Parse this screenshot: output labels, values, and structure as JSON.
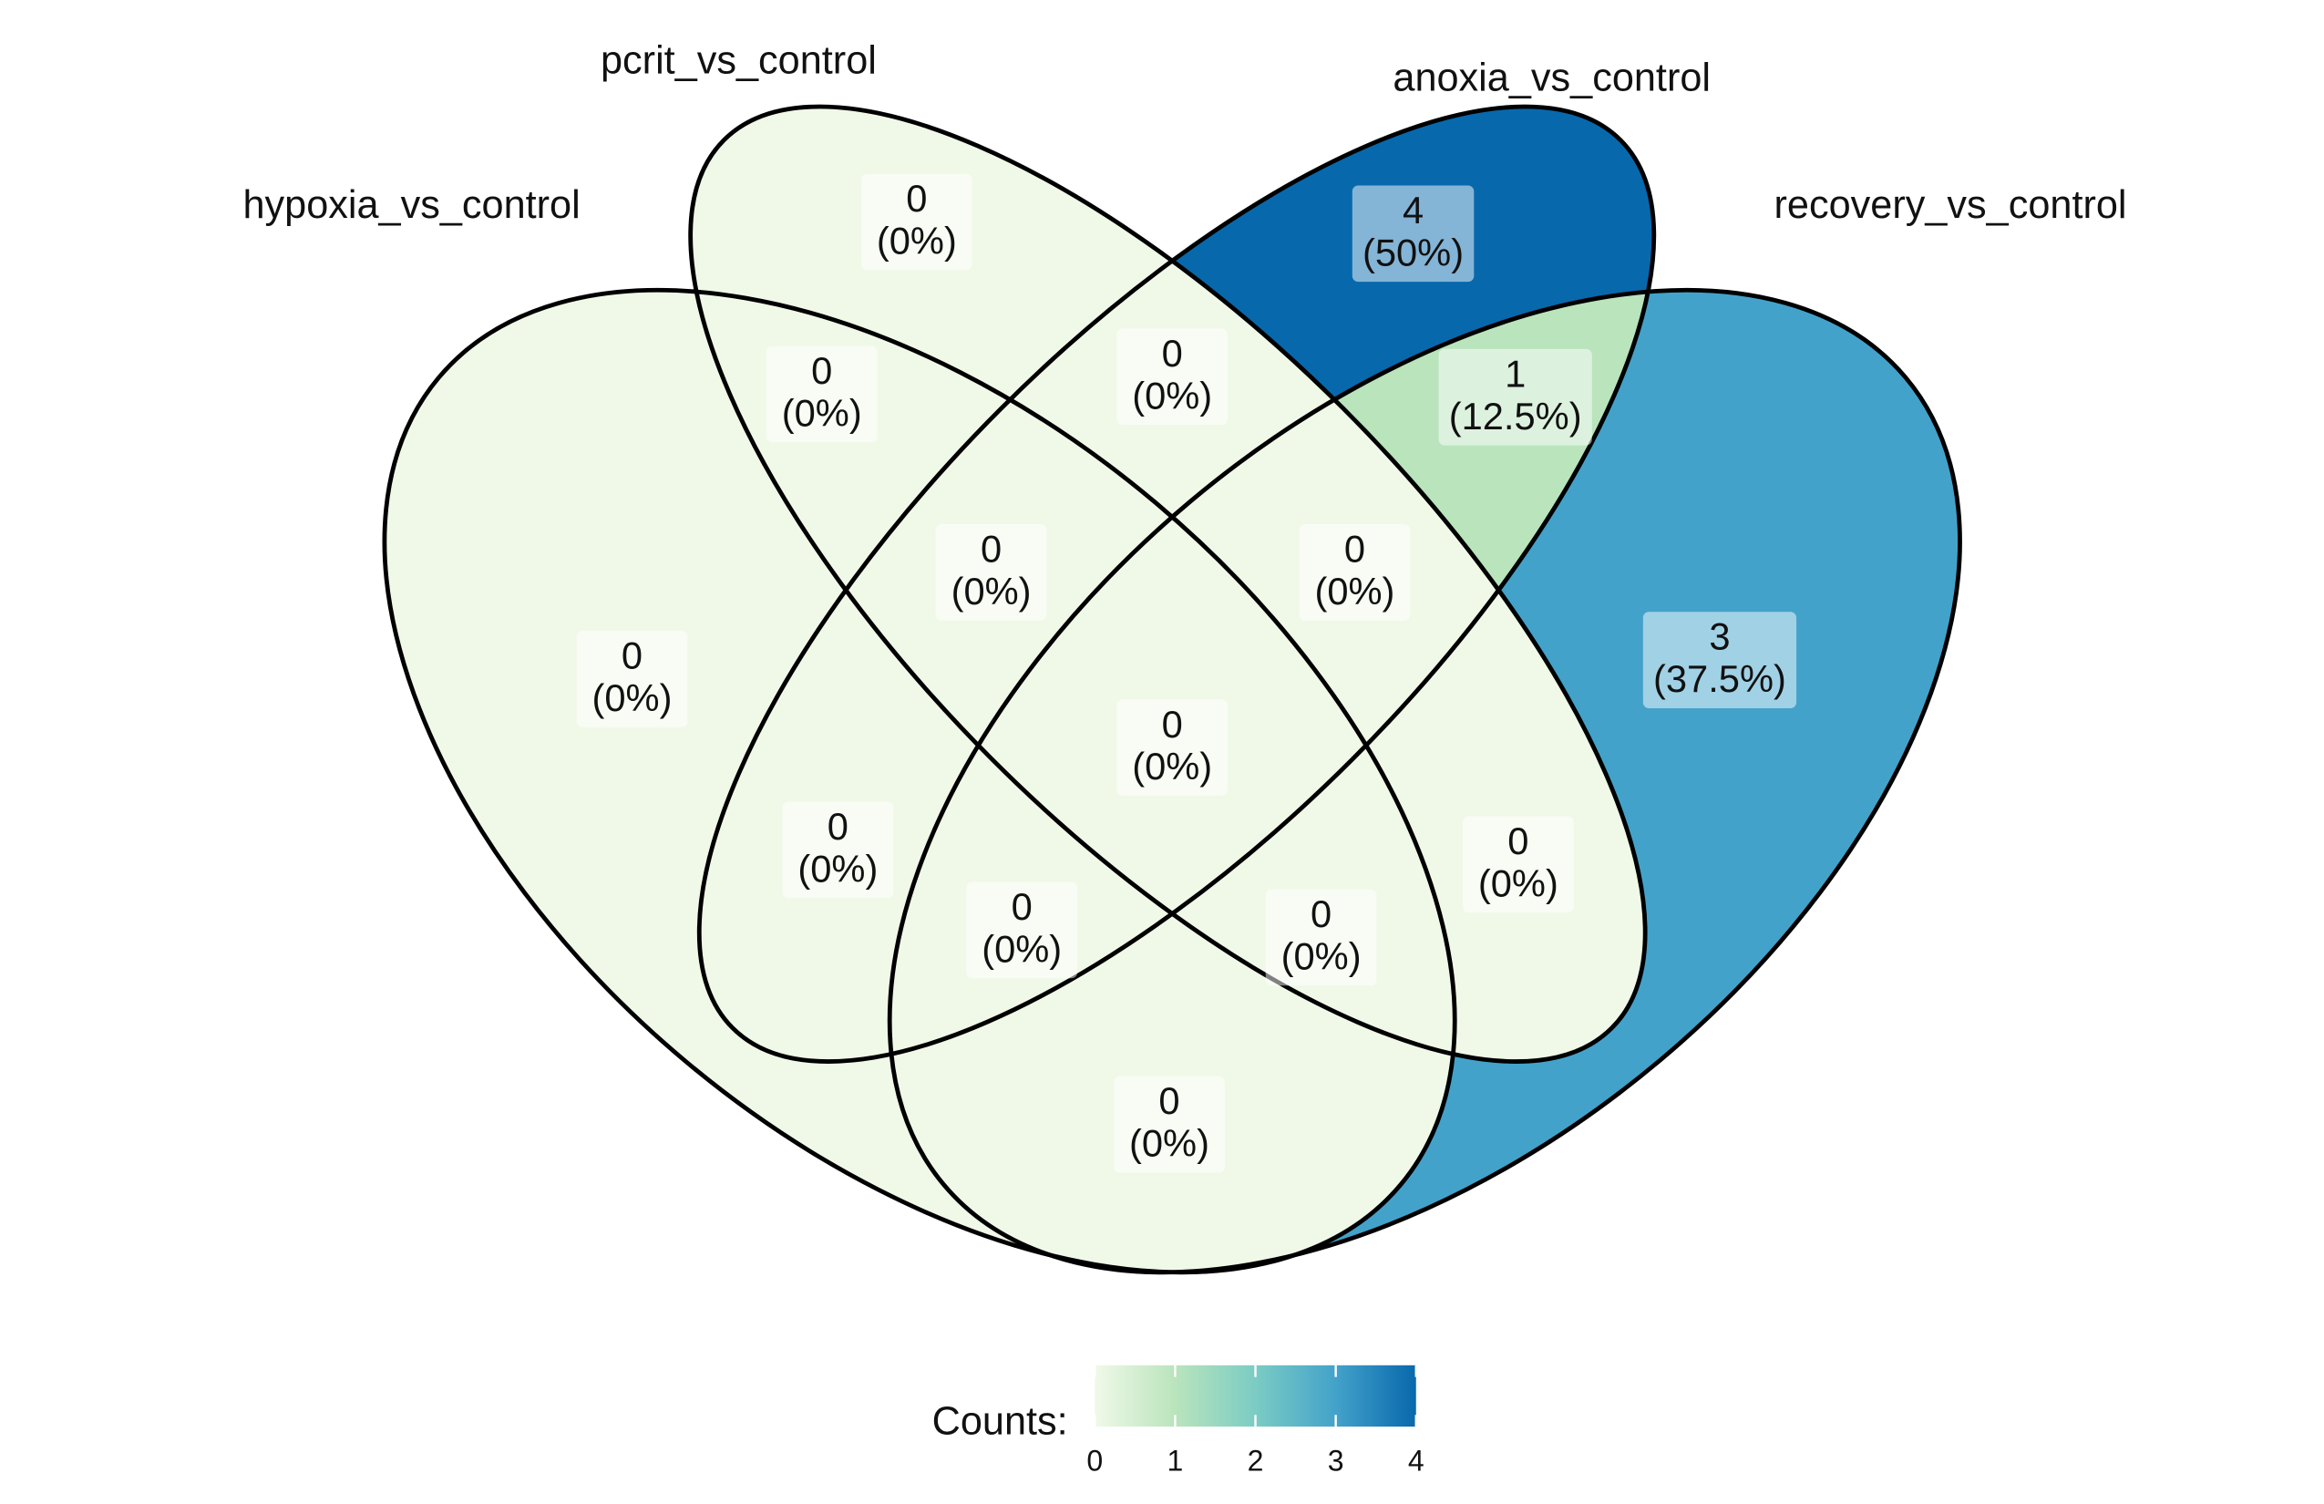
{
  "chart_data": {
    "type": "venn",
    "sets": [
      "hypoxia_vs_control",
      "pcrit_vs_control",
      "anoxia_vs_control",
      "recovery_vs_control"
    ],
    "values": [
      0,
      0,
      4,
      3,
      0,
      0,
      1,
      0,
      0,
      0,
      0,
      0,
      0,
      0,
      0
    ],
    "percents": [
      0,
      0,
      50,
      37.5,
      0,
      0,
      12.5,
      0,
      0,
      0,
      0,
      0,
      0,
      0,
      0
    ],
    "percent_labels": [
      "(0%)",
      "(0%)",
      "(50%)",
      "(37.5%)",
      "(0%)",
      "(0%)",
      "(12.5%)",
      "(0%)",
      "(0%)",
      "(0%)",
      "(0%)",
      "(0%)",
      "(0%)",
      "(0%)",
      "(0%)"
    ],
    "legend_title": "Counts:",
    "clim": [
      0,
      4
    ],
    "cticks": [
      0,
      1,
      2,
      3,
      4
    ],
    "colors": [
      "#F0F9E8",
      "#BAE4BC",
      "#7BCCC4",
      "#43A2CA",
      "#0868AC"
    ]
  }
}
